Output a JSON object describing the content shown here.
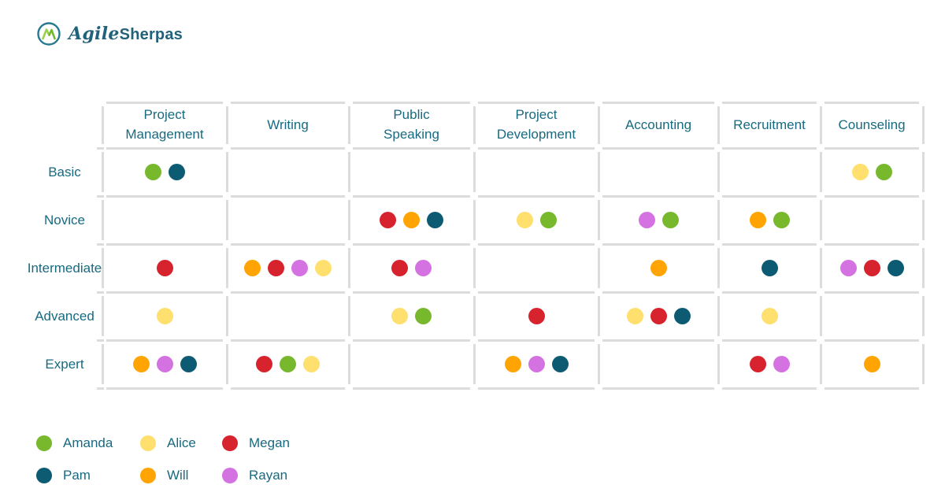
{
  "brand": {
    "script": "Agile",
    "bold": "Sherpas",
    "icon": "mountain-monogram-icon"
  },
  "colors": {
    "teal_text": "#176a80",
    "grid_line": "#dcdcdc",
    "background": "#ffffff",
    "logo_teal": "#27798f",
    "logo_green": "#8cc63f"
  },
  "chart_data": {
    "type": "table",
    "description": "Skill matrix: colored dots mark each person's proficiency level per skill",
    "columns": [
      "Project\nManagement",
      "Writing",
      "Public\nSpeaking",
      "Project\nDevelopment",
      "Accounting",
      "Recruitment",
      "Counseling"
    ],
    "rows": [
      "Basic",
      "Novice",
      "Intermediate",
      "Advanced",
      "Expert"
    ],
    "legend_position": "bottom-left",
    "legend": [
      {
        "name": "Amanda",
        "color": "#77b82d"
      },
      {
        "name": "Alice",
        "color": "#ffdf6e"
      },
      {
        "name": "Megan",
        "color": "#d6232e"
      },
      {
        "name": "Pam",
        "color": "#0d5b72"
      },
      {
        "name": "Will",
        "color": "#ffa402"
      },
      {
        "name": "Rayan",
        "color": "#d572e2"
      }
    ],
    "cells": [
      [
        [
          "Amanda",
          "Pam"
        ],
        [],
        [],
        [],
        [],
        [],
        [
          "Alice",
          "Amanda"
        ]
      ],
      [
        [],
        [],
        [
          "Megan",
          "Will",
          "Pam"
        ],
        [
          "Alice",
          "Amanda"
        ],
        [
          "Rayan",
          "Amanda"
        ],
        [
          "Will",
          "Amanda"
        ],
        []
      ],
      [
        [
          "Megan"
        ],
        [
          "Will",
          "Megan",
          "Rayan",
          "Alice"
        ],
        [
          "Megan",
          "Rayan"
        ],
        [],
        [
          "Will"
        ],
        [
          "Pam"
        ],
        [
          "Rayan",
          "Megan",
          "Pam"
        ]
      ],
      [
        [
          "Alice"
        ],
        [],
        [
          "Alice",
          "Amanda"
        ],
        [
          "Megan"
        ],
        [
          "Alice",
          "Megan",
          "Pam"
        ],
        [
          "Alice"
        ],
        []
      ],
      [
        [
          "Will",
          "Rayan",
          "Pam"
        ],
        [
          "Megan",
          "Amanda",
          "Alice"
        ],
        [],
        [
          "Will",
          "Rayan",
          "Pam"
        ],
        [],
        [
          "Megan",
          "Rayan"
        ],
        [
          "Will"
        ]
      ]
    ]
  }
}
